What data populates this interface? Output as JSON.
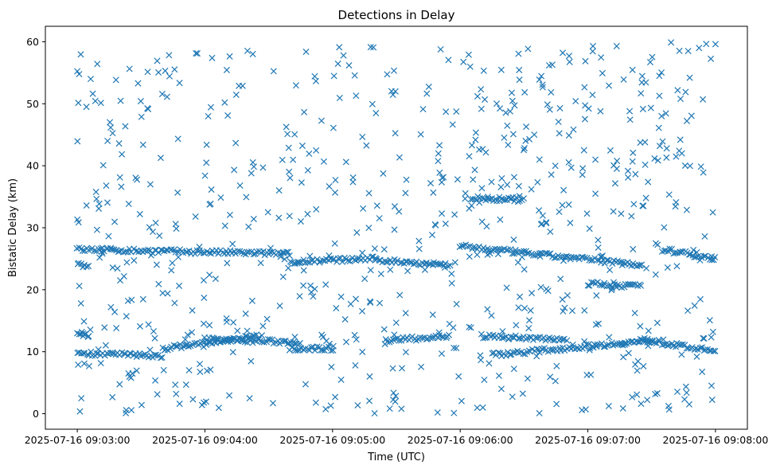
{
  "chart_data": {
    "type": "scatter",
    "title": "Detections in Delay",
    "xlabel": "Time (UTC)",
    "ylabel": "Bistatic Delay (km)",
    "marker": "x",
    "marker_color": "#1f77b4",
    "grid": false,
    "legend": "none",
    "xlim": [
      "2025-07-16 09:02:45",
      "2025-07-16 09:08:15"
    ],
    "ylim": [
      -2.5,
      62.5
    ],
    "x_ticks": [
      "2025-07-16 09:03:00",
      "2025-07-16 09:04:00",
      "2025-07-16 09:05:00",
      "2025-07-16 09:06:00",
      "2025-07-16 09:07:00",
      "2025-07-16 09:08:00"
    ],
    "y_ticks": [
      0,
      10,
      20,
      30,
      40,
      50,
      60
    ],
    "x_range": [
      "2025-07-16 09:03:00",
      "2025-07-16 09:08:00"
    ],
    "y_range": [
      0,
      60
    ],
    "tracks": [
      {
        "x_start": "2025-07-16 09:03:00",
        "x_end": "2025-07-16 09:04:40",
        "y_start": 26.5,
        "y_end": 25.8
      },
      {
        "x_start": "2025-07-16 09:03:00",
        "x_end": "2025-07-16 09:03:05",
        "y_start": 24.0,
        "y_end": 23.8
      },
      {
        "x_start": "2025-07-16 09:03:00",
        "x_end": "2025-07-16 09:03:40",
        "y_start": 9.8,
        "y_end": 9.3
      },
      {
        "x_start": "2025-07-16 09:03:00",
        "x_end": "2025-07-16 09:03:05",
        "y_start": 12.7,
        "y_end": 12.5
      },
      {
        "x_start": "2025-07-16 09:03:40",
        "x_end": "2025-07-16 09:04:25",
        "y_start": 10.5,
        "y_end": 12.5
      },
      {
        "x_start": "2025-07-16 09:04:00",
        "x_end": "2025-07-16 09:04:45",
        "y_start": 12.0,
        "y_end": 11.5
      },
      {
        "x_start": "2025-07-16 09:04:40",
        "x_end": "2025-07-16 09:05:00",
        "y_start": 10.5,
        "y_end": 10.5
      },
      {
        "x_start": "2025-07-16 09:04:40",
        "x_end": "2025-07-16 09:05:20",
        "y_start": 24.5,
        "y_end": 25.0
      },
      {
        "x_start": "2025-07-16 09:05:20",
        "x_end": "2025-07-16 09:05:55",
        "y_start": 24.8,
        "y_end": 24.0
      },
      {
        "x_start": "2025-07-16 09:05:25",
        "x_end": "2025-07-16 09:05:55",
        "y_start": 11.8,
        "y_end": 12.5
      },
      {
        "x_start": "2025-07-16 09:06:00",
        "x_end": "2025-07-16 09:07:25",
        "y_start": 27.0,
        "y_end": 24.0
      },
      {
        "x_start": "2025-07-16 09:06:05",
        "x_end": "2025-07-16 09:06:30",
        "y_start": 34.8,
        "y_end": 34.5
      },
      {
        "x_start": "2025-07-16 09:06:10",
        "x_end": "2025-07-16 09:06:50",
        "y_start": 12.5,
        "y_end": 12.0
      },
      {
        "x_start": "2025-07-16 09:06:15",
        "x_end": "2025-07-16 09:07:30",
        "y_start": 9.5,
        "y_end": 11.8
      },
      {
        "x_start": "2025-07-16 09:07:25",
        "x_end": "2025-07-16 09:08:00",
        "y_start": 12.0,
        "y_end": 10.0
      },
      {
        "x_start": "2025-07-16 09:07:00",
        "x_end": "2025-07-16 09:07:25",
        "y_start": 21.0,
        "y_end": 20.5
      },
      {
        "x_start": "2025-07-16 09:07:35",
        "x_end": "2025-07-16 09:08:00",
        "y_start": 26.5,
        "y_end": 25.0
      }
    ]
  }
}
